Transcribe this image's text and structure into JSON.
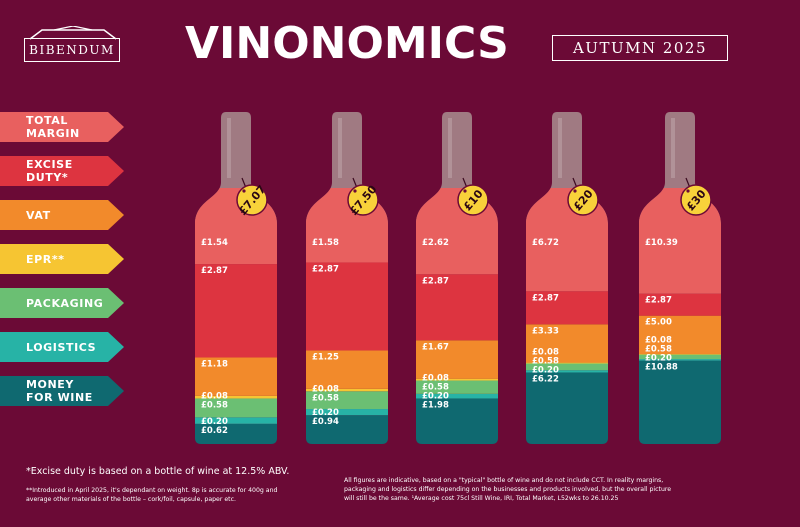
{
  "brand": "BIBENDUM",
  "title": "VINONOMICS",
  "season": "AUTUMN 2025",
  "colors": {
    "background": "#6b0a36",
    "total_margin": "#e8605f",
    "excise_duty": "#dd3440",
    "vat": "#f28a2b",
    "epr": "#f6c532",
    "packaging": "#6bbf73",
    "logistics": "#27b3a6",
    "money_for_wine": "#0f6970",
    "neck": "#a07a82",
    "tag": "#f8d23a"
  },
  "legend": [
    {
      "key": "total_margin",
      "label": "TOTAL\nMARGIN"
    },
    {
      "key": "excise_duty",
      "label": "EXCISE\nDUTY*"
    },
    {
      "key": "vat",
      "label": "VAT"
    },
    {
      "key": "epr",
      "label": "EPR**"
    },
    {
      "key": "packaging",
      "label": "PACKAGING"
    },
    {
      "key": "logistics",
      "label": "LOGISTICS"
    },
    {
      "key": "money_for_wine",
      "label": "MONEY\nFOR WINE"
    }
  ],
  "chart_data": {
    "type": "bar",
    "stacked": true,
    "categories": [
      "£7.07",
      "£7.50",
      "£10",
      "£20",
      "£30"
    ],
    "series": [
      {
        "name": "MONEY FOR WINE",
        "key": "money_for_wine",
        "values": [
          0.62,
          0.94,
          1.98,
          6.22,
          10.88
        ],
        "labels": [
          "£0.62",
          "£0.94",
          "£1.98",
          "£6.22",
          "£10.88"
        ]
      },
      {
        "name": "LOGISTICS",
        "key": "logistics",
        "values": [
          0.2,
          0.2,
          0.2,
          0.2,
          0.2
        ],
        "labels": [
          "£0.20",
          "£0.20",
          "£0.20",
          "£0.20",
          "£0.20"
        ]
      },
      {
        "name": "PACKAGING",
        "key": "packaging",
        "values": [
          0.58,
          0.58,
          0.58,
          0.58,
          0.58
        ],
        "labels": [
          "£0.58",
          "£0.58",
          "£0.58",
          "£0.58",
          "£0.58"
        ]
      },
      {
        "name": "EPR**",
        "key": "epr",
        "values": [
          0.08,
          0.08,
          0.08,
          0.08,
          0.08
        ],
        "labels": [
          "£0.08",
          "£0.08",
          "£0.08",
          "£0.08",
          "£0.08"
        ]
      },
      {
        "name": "VAT",
        "key": "vat",
        "values": [
          1.18,
          1.25,
          1.67,
          3.33,
          5.0
        ],
        "labels": [
          "£1.18",
          "£1.25",
          "£1.67",
          "£3.33",
          "£5.00"
        ]
      },
      {
        "name": "EXCISE DUTY*",
        "key": "excise_duty",
        "values": [
          2.87,
          2.87,
          2.87,
          2.87,
          2.87
        ],
        "labels": [
          "£2.87",
          "£2.87",
          "£2.87",
          "£2.87",
          "£2.87"
        ]
      },
      {
        "name": "TOTAL MARGIN",
        "key": "total_margin",
        "values": [
          1.54,
          1.58,
          2.62,
          6.72,
          10.39
        ],
        "labels": [
          "£1.54",
          "£1.58",
          "£2.62",
          "£6.72",
          "£10.39"
        ]
      }
    ]
  },
  "notes": {
    "excise": "*Excise duty is based on a bottle of wine at 12.5% ABV.",
    "epr": "**Introduced in April 2025, it's dependant on weight. 8p is accurate for 400g and average other materials of the bottle – cork/foil, capsule, paper etc.",
    "disclaimer": "All figures are indicative, based on a \"typical\" bottle of wine and do not include CCT. In reality margins, packaging and logistics differ depending on the businesses and products involved, but the overall picture will still be the same. ¹Average cost 75cl Still Wine, IRI, Total Market, L52wks to 26.10.25"
  }
}
